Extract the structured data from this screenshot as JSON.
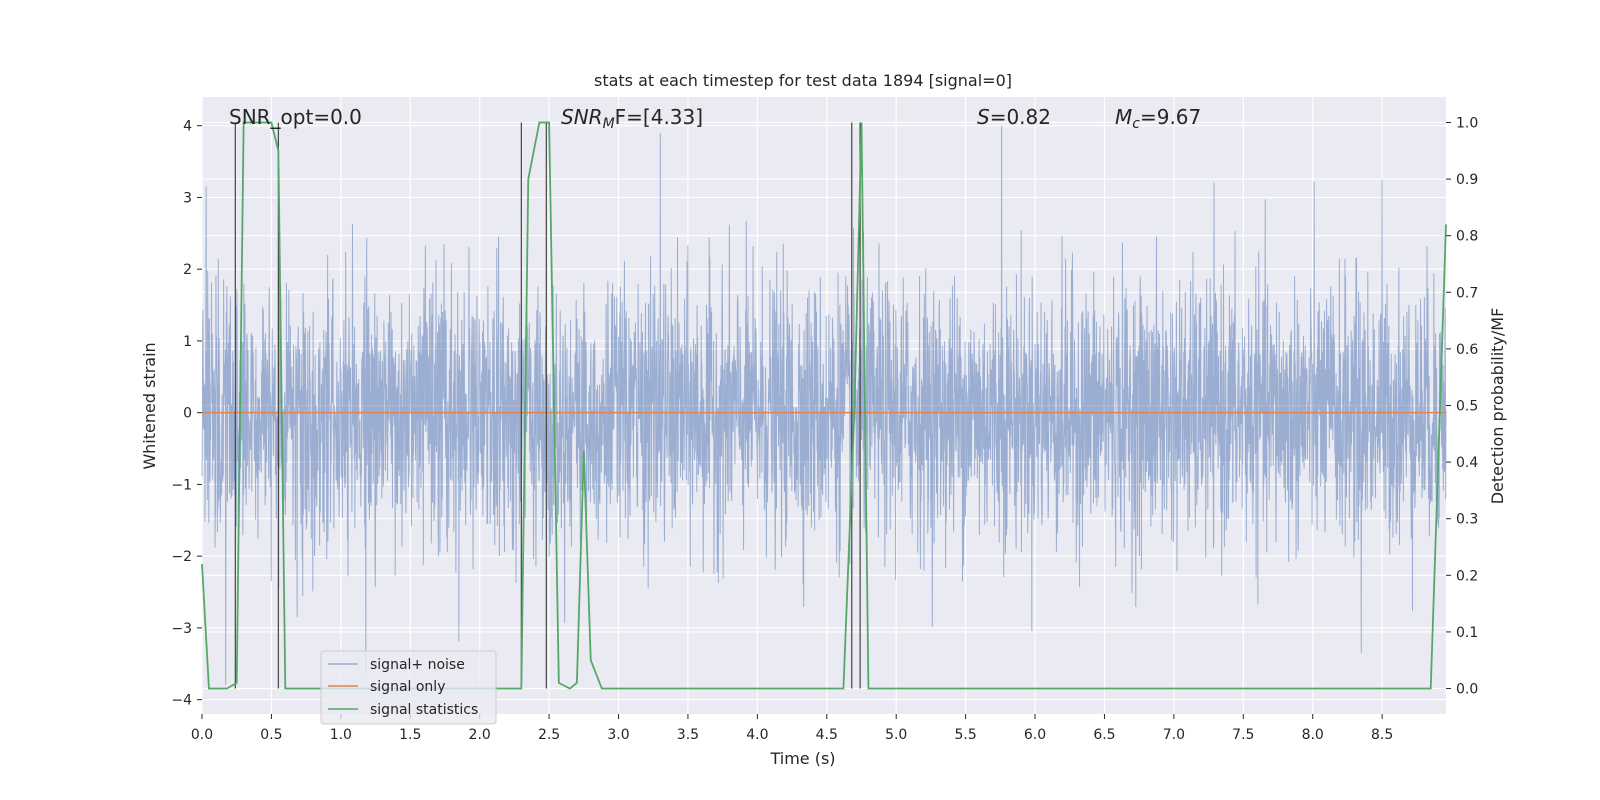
{
  "chart_data": {
    "type": "line",
    "title": "stats at each timestep for test data 1894 [signal=0]",
    "xlabel": "Time (s)",
    "ylabel_left": "Whitened strain",
    "ylabel_right": "Detection probability/MF",
    "xlim": [
      0.0,
      8.96
    ],
    "ylim_left": [
      -4.2,
      4.4
    ],
    "ylim_right": [
      -0.045,
      1.045
    ],
    "x_ticks": [
      "0.0",
      "0.5",
      "1.0",
      "1.5",
      "2.0",
      "2.5",
      "3.0",
      "3.5",
      "4.0",
      "4.5",
      "5.0",
      "5.5",
      "6.0",
      "6.5",
      "7.0",
      "7.5",
      "8.0",
      "8.5"
    ],
    "y_ticks_left": [
      "4",
      "3",
      "2",
      "1",
      "0",
      "−1",
      "−2",
      "−3",
      "−4"
    ],
    "y_ticks_right": [
      "1.0",
      "0.9",
      "0.8",
      "0.7",
      "0.6",
      "0.5",
      "0.4",
      "0.3",
      "0.2",
      "0.1",
      "0.0"
    ],
    "grid": true,
    "legend_position": "lower-left",
    "annotations": {
      "snr_opt": "SNR_opt=0.0",
      "snr_mf_pre": "SNR",
      "snr_mf_sub": "M",
      "snr_mf_post": "F=[4.33]",
      "s_var": "S",
      "s_val": "=0.82",
      "mc_var": "M",
      "mc_sub": "c",
      "mc_val": "=9.67"
    },
    "series": [
      {
        "name": "signal+ noise",
        "color": "#4c72b0",
        "alpha": 0.5,
        "description": "noise trace sampled at ~2048 Hz, roughly Gaussian with std ~0.9, peaks near ±3.9",
        "x_range": [
          0.0,
          8.96
        ],
        "std": 0.9,
        "peaks": [
          [
            0.03,
            3.15
          ],
          [
            3.3,
            3.9
          ],
          [
            5.76,
            4.0
          ],
          [
            8.5,
            3.25
          ],
          [
            1.18,
            -3.65
          ],
          [
            0.17,
            -3.8
          ],
          [
            8.35,
            -3.35
          ]
        ]
      },
      {
        "name": "signal only",
        "color": "#dd8452",
        "x": [
          0.0,
          8.96
        ],
        "y": [
          0.0,
          0.0
        ]
      },
      {
        "name": "signal statistics",
        "color": "#55a868",
        "x": [
          0.0,
          0.05,
          0.18,
          0.25,
          0.3,
          0.5,
          0.55,
          0.6,
          2.3,
          2.35,
          2.43,
          2.5,
          2.57,
          2.65,
          2.7,
          2.75,
          2.8,
          2.88,
          4.62,
          4.7,
          4.75,
          4.8,
          8.85,
          8.96
        ],
        "y": [
          0.22,
          0.0,
          0.0,
          0.01,
          1.0,
          1.0,
          0.95,
          0.0,
          0.0,
          0.9,
          1.0,
          1.0,
          0.01,
          0.0,
          0.01,
          0.42,
          0.05,
          0.0,
          0.0,
          0.5,
          1.0,
          0.0,
          0.0,
          0.82
        ]
      }
    ],
    "vertical_markers_x": [
      0.24,
      0.55,
      2.3,
      2.48,
      4.68,
      4.74
    ]
  }
}
